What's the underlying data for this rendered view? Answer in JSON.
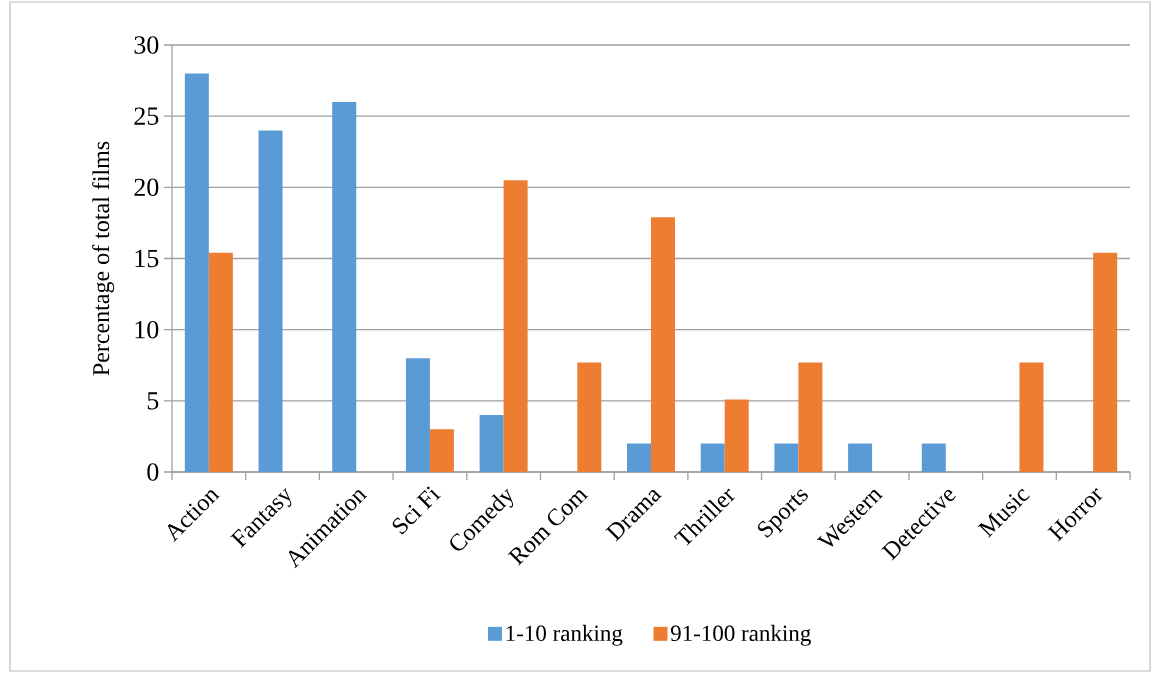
{
  "chart_data": {
    "type": "bar",
    "ylabel": "Percentage of total films",
    "categories": [
      "Action",
      "Fantasy",
      "Animation",
      "Sci Fi",
      "Comedy",
      "Rom Com",
      "Drama",
      "Thriller",
      "Sports",
      "Western",
      "Detective",
      "Music",
      "Horror"
    ],
    "series": [
      {
        "name": "1-10 ranking",
        "color": "#5b9bd5",
        "values": [
          28,
          24,
          26,
          8,
          4,
          null,
          2,
          2,
          2,
          2,
          2,
          null,
          null
        ]
      },
      {
        "name": "91-100 ranking",
        "color": "#ed7d31",
        "values": [
          15.4,
          null,
          null,
          3,
          20.5,
          7.7,
          17.9,
          5.1,
          7.7,
          null,
          null,
          7.7,
          15.4
        ]
      }
    ],
    "ylim": [
      0,
      30
    ],
    "yticks": [
      0,
      5,
      10,
      15,
      20,
      25,
      30
    ],
    "grid": "y",
    "legend": "bottom"
  }
}
